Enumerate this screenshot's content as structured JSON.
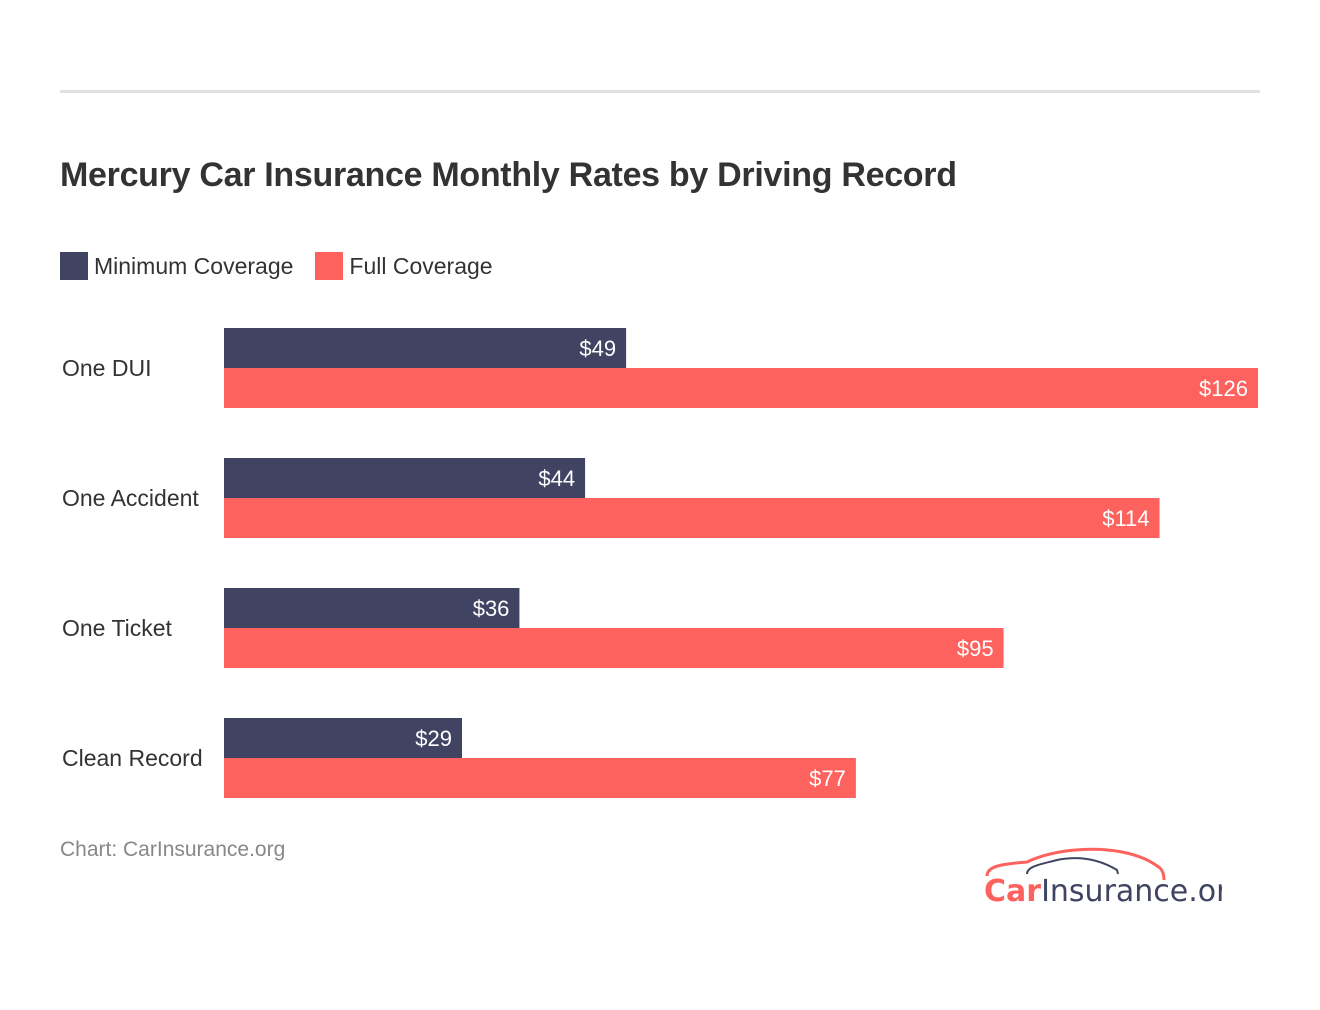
{
  "chart_data": {
    "type": "bar",
    "orientation": "horizontal",
    "title": "Mercury Car Insurance Monthly Rates by Driving Record",
    "categories": [
      "One DUI",
      "One Accident",
      "One Ticket",
      "Clean Record"
    ],
    "series": [
      {
        "name": "Minimum Coverage",
        "color": "#404462",
        "values": [
          49,
          44,
          36,
          29
        ],
        "labels": [
          "$49",
          "$44",
          "$36",
          "$29"
        ]
      },
      {
        "name": "Full Coverage",
        "color": "#fe625e",
        "values": [
          126,
          114,
          95,
          77
        ],
        "labels": [
          "$126",
          "$114",
          "$95",
          "$77"
        ]
      }
    ],
    "xlim": [
      0,
      126
    ],
    "grid": false,
    "legend": "top-left",
    "source": "Chart: CarInsurance.org"
  },
  "logo": {
    "text": "CarInsurance.org",
    "part1": "Car",
    "part2": "Insurance.org"
  }
}
